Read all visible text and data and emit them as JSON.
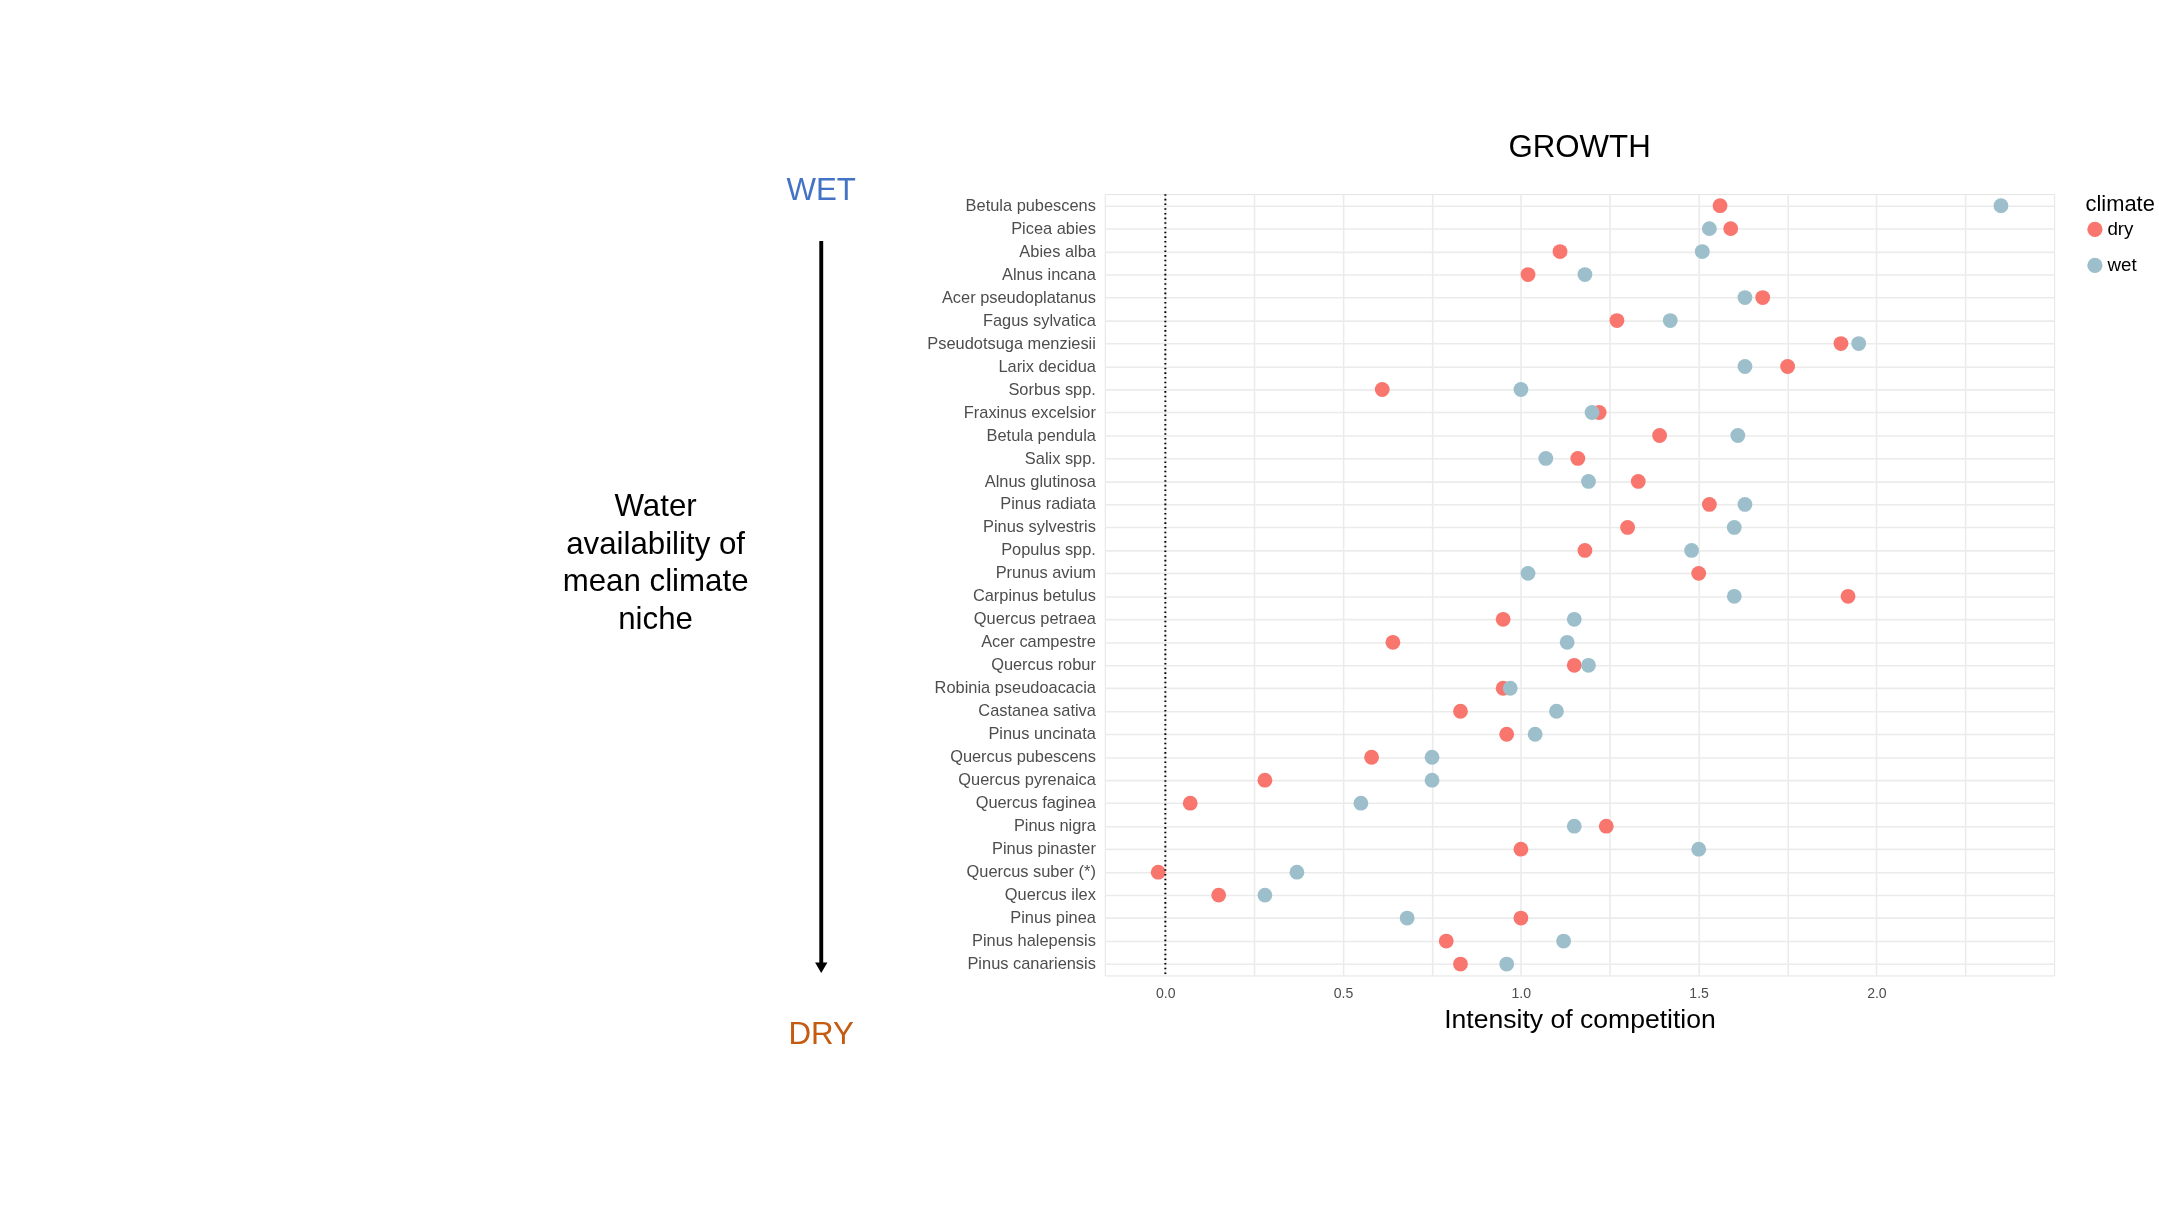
{
  "chart_data": {
    "type": "scatter",
    "title": "GROWTH",
    "xlabel": "Intensity of competition",
    "legend_title": "climate",
    "categories": [
      "Betula pubescens",
      "Picea abies",
      "Abies alba",
      "Alnus incana",
      "Acer pseudoplatanus",
      "Fagus sylvatica",
      "Pseudotsuga menziesii",
      "Larix decidua",
      "Sorbus spp.",
      "Fraxinus excelsior",
      "Betula pendula",
      "Salix spp.",
      "Alnus glutinosa",
      "Pinus radiata",
      "Pinus sylvestris",
      "Populus spp.",
      "Prunus avium",
      "Carpinus betulus",
      "Quercus petraea",
      "Acer campestre",
      "Quercus robur",
      "Robinia pseudoacacia",
      "Castanea sativa",
      "Pinus uncinata",
      "Quercus pubescens",
      "Quercus pyrenaica",
      "Quercus faginea",
      "Pinus nigra",
      "Pinus pinaster",
      "Quercus suber (*)",
      "Quercus ilex",
      "Pinus pinea",
      "Pinus halepensis",
      "Pinus canariensis"
    ],
    "series": [
      {
        "name": "dry",
        "color": "#f8766d",
        "values": [
          1.56,
          1.59,
          1.11,
          1.02,
          1.68,
          1.27,
          1.9,
          1.75,
          0.61,
          1.22,
          1.39,
          1.16,
          1.33,
          1.53,
          1.3,
          1.18,
          1.5,
          1.92,
          0.95,
          0.64,
          1.15,
          0.95,
          0.83,
          0.96,
          0.58,
          0.28,
          0.07,
          1.24,
          1.0,
          -0.02,
          0.15,
          1.0,
          0.79,
          0.83
        ]
      },
      {
        "name": "wet",
        "color": "#9dbfcb",
        "values": [
          2.35,
          1.53,
          1.51,
          1.18,
          1.63,
          1.42,
          1.95,
          1.63,
          1.0,
          1.2,
          1.61,
          1.07,
          1.19,
          1.63,
          1.6,
          1.48,
          1.02,
          1.6,
          1.15,
          1.13,
          1.19,
          0.97,
          1.1,
          1.04,
          0.75,
          0.75,
          0.55,
          1.15,
          1.5,
          0.37,
          0.28,
          0.68,
          1.12,
          0.96
        ]
      }
    ],
    "xlim": [
      -0.17,
      2.5
    ],
    "xticks": [
      {
        "value": 0.0,
        "label": "0.0"
      },
      {
        "value": 0.25,
        "label": null
      },
      {
        "value": 0.5,
        "label": "0.5"
      },
      {
        "value": 0.75,
        "label": null
      },
      {
        "value": 1.0,
        "label": "1.0"
      },
      {
        "value": 1.25,
        "label": null
      },
      {
        "value": 1.5,
        "label": "1.5"
      },
      {
        "value": 1.75,
        "label": null
      },
      {
        "value": 2.0,
        "label": "2.0"
      },
      {
        "value": 2.25,
        "label": null
      }
    ],
    "ref_lines": [
      {
        "axis": "x",
        "value": 0,
        "color": "#000000",
        "line_style": "dotted"
      }
    ],
    "annotations": [
      "WET",
      "Water\navailability of\nmean climate\nniche",
      "DRY"
    ],
    "grid": true,
    "legend": "right",
    "marker": "circle",
    "orientation": "horizontal"
  }
}
